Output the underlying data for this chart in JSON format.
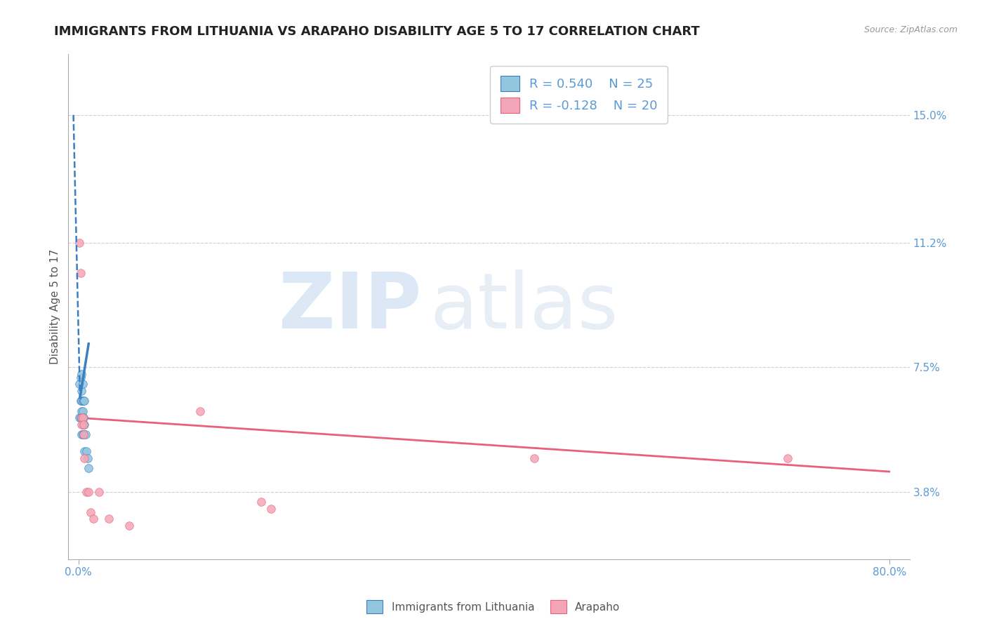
{
  "title": "IMMIGRANTS FROM LITHUANIA VS ARAPAHO DISABILITY AGE 5 TO 17 CORRELATION CHART",
  "source": "Source: ZipAtlas.com",
  "ylabel": "Disability Age 5 to 17",
  "x_tick_labels": [
    "0.0%",
    "80.0%"
  ],
  "y_tick_labels": [
    "15.0%",
    "11.2%",
    "7.5%",
    "3.8%"
  ],
  "y_tick_values": [
    0.15,
    0.112,
    0.075,
    0.038
  ],
  "xlim": [
    -0.01,
    0.82
  ],
  "ylim": [
    0.018,
    0.168
  ],
  "legend_r1": "R = 0.540",
  "legend_n1": "N = 25",
  "legend_r2": "R = -0.128",
  "legend_n2": "N = 20",
  "color_blue": "#92c5de",
  "color_pink": "#f4a6b8",
  "color_blue_line": "#3a7fc1",
  "color_pink_line": "#e8607a",
  "color_title": "#222222",
  "color_axis_label": "#555555",
  "color_tick_label": "#5b9bd5",
  "color_grid": "#d0d0d0",
  "color_source": "#999999",
  "color_watermark": "#dce8f5",
  "blue_scatter_x": [
    0.001,
    0.001,
    0.002,
    0.002,
    0.002,
    0.003,
    0.003,
    0.003,
    0.003,
    0.003,
    0.004,
    0.004,
    0.004,
    0.004,
    0.004,
    0.005,
    0.005,
    0.005,
    0.006,
    0.006,
    0.006,
    0.007,
    0.008,
    0.009,
    0.01
  ],
  "blue_scatter_y": [
    0.06,
    0.07,
    0.06,
    0.065,
    0.072,
    0.055,
    0.062,
    0.065,
    0.068,
    0.073,
    0.055,
    0.058,
    0.062,
    0.065,
    0.07,
    0.055,
    0.06,
    0.065,
    0.05,
    0.058,
    0.065,
    0.055,
    0.05,
    0.048,
    0.045
  ],
  "pink_scatter_x": [
    0.001,
    0.002,
    0.003,
    0.003,
    0.004,
    0.005,
    0.005,
    0.006,
    0.008,
    0.01,
    0.012,
    0.015,
    0.02,
    0.03,
    0.05,
    0.12,
    0.18,
    0.19,
    0.45,
    0.7
  ],
  "pink_scatter_y": [
    0.112,
    0.103,
    0.06,
    0.058,
    0.06,
    0.055,
    0.058,
    0.048,
    0.038,
    0.038,
    0.032,
    0.03,
    0.038,
    0.03,
    0.028,
    0.062,
    0.035,
    0.033,
    0.048,
    0.048
  ],
  "blue_solid_line_x": [
    0.0015,
    0.01
  ],
  "blue_solid_line_y": [
    0.066,
    0.082
  ],
  "blue_dash_line_x": [
    -0.005,
    0.0015
  ],
  "blue_dash_line_y": [
    0.15,
    0.066
  ],
  "pink_line_x": [
    0.0,
    0.8
  ],
  "pink_line_y": [
    0.06,
    0.044
  ],
  "watermark_text_zip": "ZIP",
  "watermark_text_atlas": "atlas",
  "legend_fontsize": 13,
  "title_fontsize": 13,
  "ylabel_fontsize": 11,
  "tick_fontsize": 11
}
